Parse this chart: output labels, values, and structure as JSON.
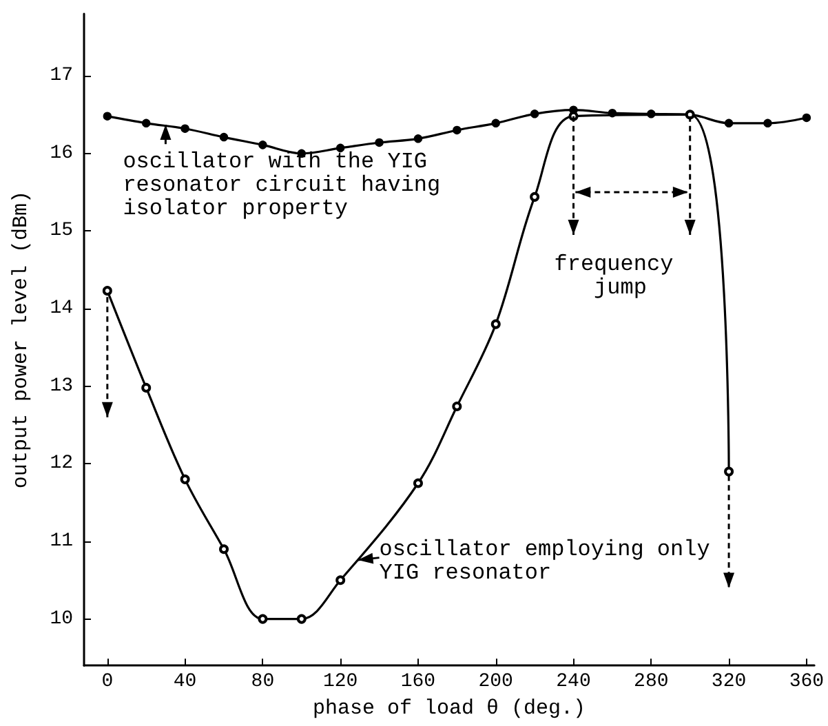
{
  "chart_data": {
    "type": "line",
    "xlabel": "phase of load θ (deg.)",
    "ylabel": "output power level (dBm)",
    "xlim": [
      -12,
      364
    ],
    "xticks": [
      0,
      40,
      80,
      120,
      160,
      200,
      240,
      280,
      320,
      360
    ],
    "ylim": [
      9.4,
      17.8
    ],
    "yticks": [
      10,
      11,
      12,
      13,
      14,
      15,
      16,
      17
    ],
    "grid": false,
    "marker": "circle",
    "line_style": "solid",
    "series": [
      {
        "color": "#000000",
        "x": [
          0,
          20,
          40,
          60,
          80,
          100,
          120,
          140,
          160,
          180,
          200,
          220,
          240,
          260,
          280,
          300,
          320,
          340,
          360
        ],
        "values": [
          16.48,
          16.39,
          16.32,
          16.21,
          16.11,
          16.0,
          16.07,
          16.14,
          16.19,
          16.3,
          16.39,
          16.51,
          16.56,
          16.52,
          16.51,
          16.5,
          16.39,
          16.39,
          16.46
        ]
      },
      {
        "color": "#000000",
        "x": [
          0,
          20,
          40,
          60,
          80,
          100,
          120,
          160,
          180,
          200,
          220,
          240,
          300,
          320
        ],
        "values": [
          14.23,
          12.98,
          11.8,
          10.9,
          10.0,
          10.0,
          10.5,
          11.75,
          12.74,
          13.8,
          15.44,
          16.48,
          16.5,
          11.9
        ]
      }
    ],
    "annotations": [
      "oscillator with the YIG resonator circuit having isolator property",
      {
        "text": "frequency jump",
        "x": 240,
        "y": 16.48
      },
      "oscillator employing only YIG resonator"
    ]
  }
}
